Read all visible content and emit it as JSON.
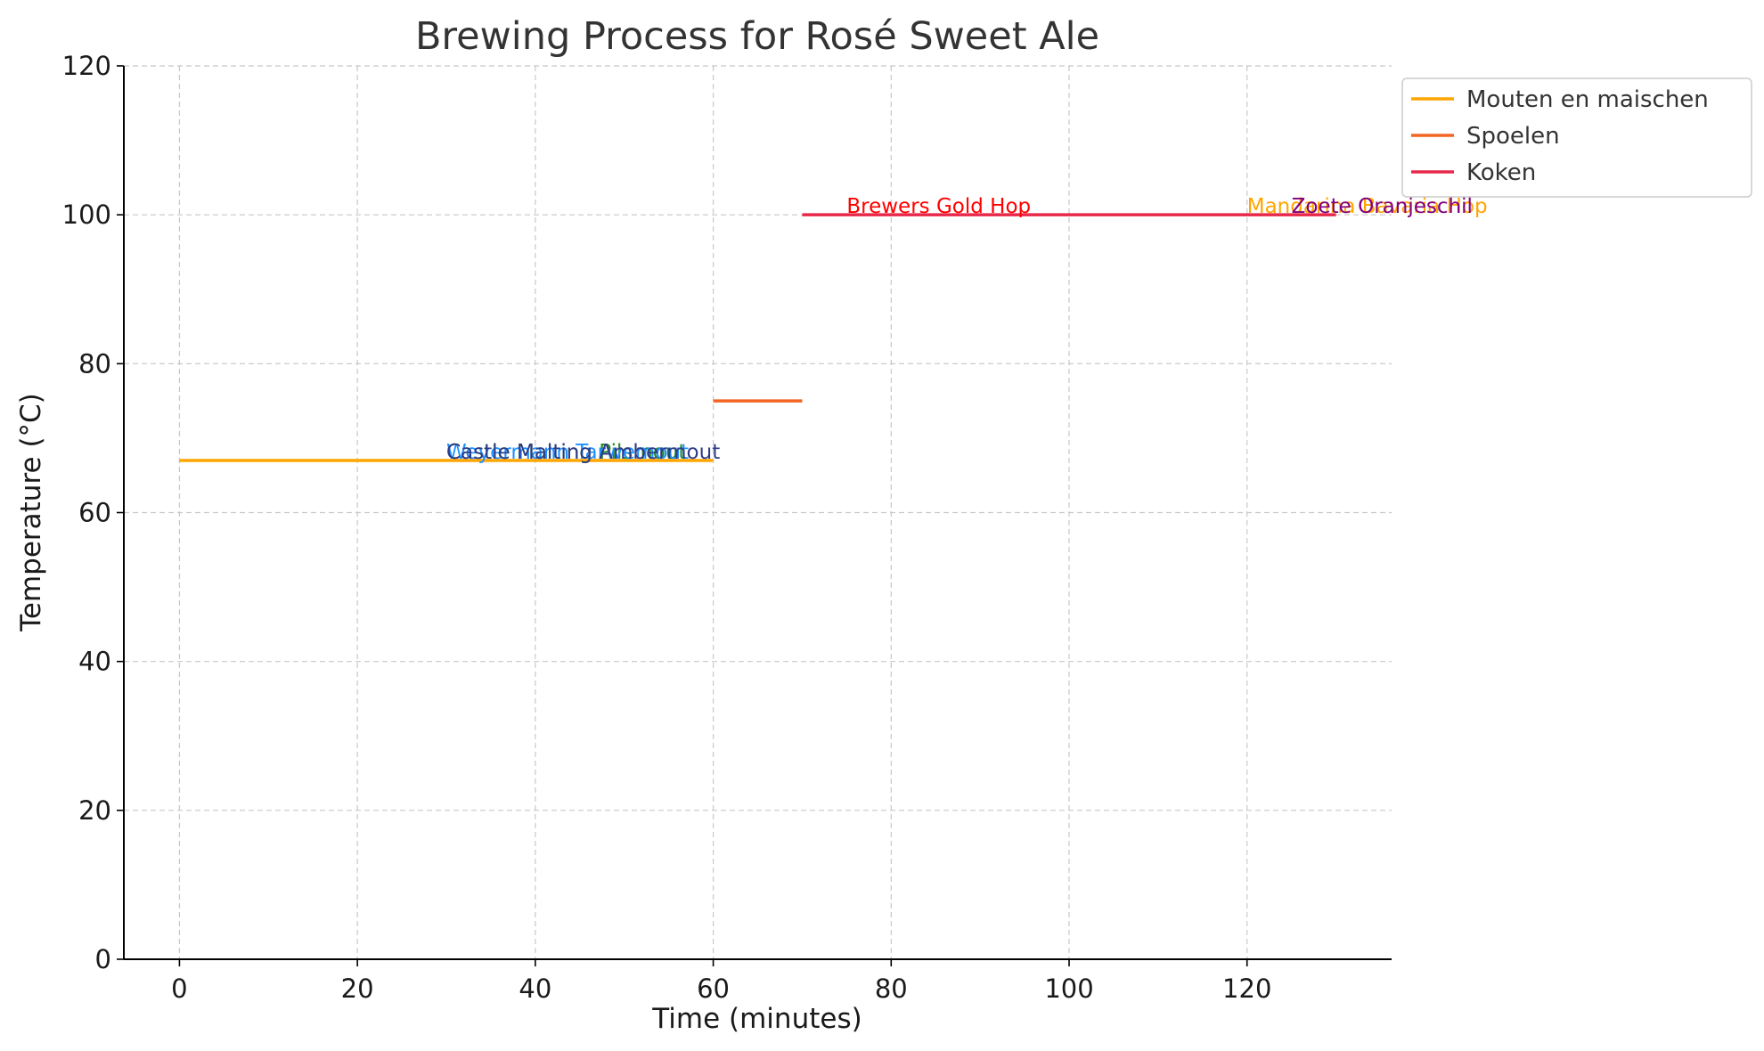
{
  "chart_data": {
    "type": "line",
    "title": "Brewing Process for Rosé Sweet Ale",
    "xlabel": "Time (minutes)",
    "ylabel": "Temperature (°C)",
    "xlim": [
      -6.25,
      136.25
    ],
    "ylim": [
      0,
      120
    ],
    "xticks": [
      0,
      20,
      40,
      60,
      80,
      100,
      120
    ],
    "yticks": [
      0,
      20,
      40,
      60,
      80,
      100,
      120
    ],
    "grid": true,
    "legend_position": "top-right",
    "series": [
      {
        "name": "Mouten en maischen",
        "color": "#FFA500",
        "x": [
          0,
          60
        ],
        "y": [
          67,
          67
        ]
      },
      {
        "name": "Spoelen",
        "color": "#F26522",
        "x": [
          60,
          70
        ],
        "y": [
          75,
          75
        ]
      },
      {
        "name": "Koken",
        "color": "#E8284A",
        "x": [
          70,
          130
        ],
        "y": [
          100,
          100
        ]
      }
    ],
    "annotations": [
      {
        "text": "Castle Malting Pilsmout",
        "x": 30,
        "y": 67,
        "color": "#228B22"
      },
      {
        "text": "Weyermann Tarwemout",
        "x": 30,
        "y": 67,
        "color": "#1E90FF"
      },
      {
        "text": "Castle Malting Ambermout",
        "x": 30,
        "y": 67,
        "color": "#2E3A87"
      },
      {
        "text": "Brewers Gold Hop",
        "x": 75,
        "y": 100,
        "color": "#FF0000"
      },
      {
        "text": "Mandarina Bavaria Hop",
        "x": 120,
        "y": 100,
        "color": "#FFA500"
      },
      {
        "text": "Zoete Oranjeschil",
        "x": 125,
        "y": 100,
        "color": "#800080"
      }
    ]
  }
}
